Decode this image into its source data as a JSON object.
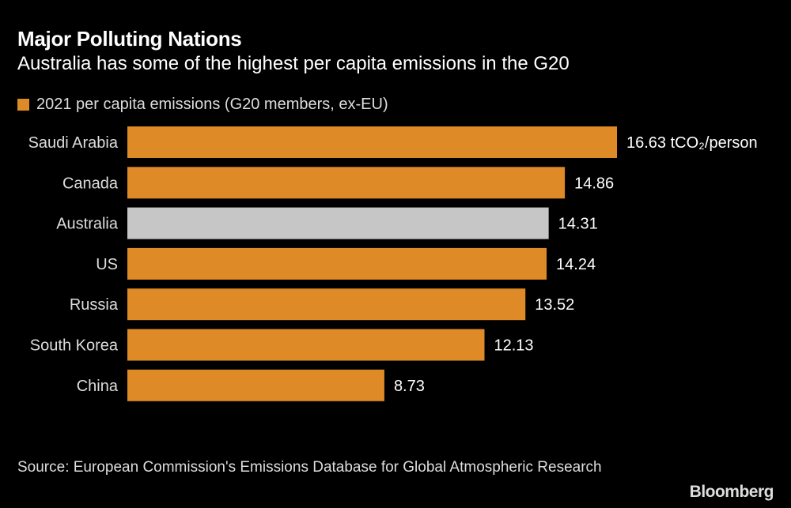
{
  "chart_data": {
    "type": "bar",
    "orientation": "horizontal",
    "title": "Major Polluting Nations",
    "subtitle": "Australia has some of the highest per capita emissions in the G20",
    "legend": [
      "2021 per capita emissions (G20 members, ex-EU)"
    ],
    "categories": [
      "Saudi Arabia",
      "Canada",
      "Australia",
      "US",
      "Russia",
      "South Korea",
      "China"
    ],
    "values": [
      16.63,
      14.86,
      14.31,
      14.24,
      13.52,
      12.13,
      8.73
    ],
    "value_labels": [
      "16.63 tCO₂/person",
      "14.86",
      "14.31",
      "14.24",
      "13.52",
      "12.13",
      "8.73"
    ],
    "highlight": "Australia",
    "colors": {
      "default": "#DD8A27",
      "highlight": "#C6C6C6",
      "background": "#000000"
    },
    "xlim": [
      0,
      16.63
    ],
    "grid": false
  },
  "footer": {
    "source": "Source: European Commission's Emissions Database for Global Atmospheric Research",
    "logo": "Bloomberg"
  }
}
